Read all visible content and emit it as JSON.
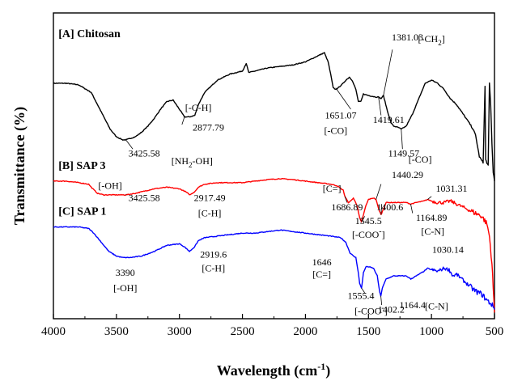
{
  "chart_data": {
    "type": "line",
    "xlabel": "Wavelength (cm",
    "xlabel_sup": "-1",
    "xlabel_close": ")",
    "ylabel": "Transmittance (%)",
    "xlim": [
      4000,
      500
    ],
    "x_reversed": true,
    "x_ticks": [
      4000,
      3500,
      3000,
      2500,
      2000,
      1500,
      1000,
      500
    ],
    "x_tick_labels": [
      "4000",
      "3500",
      "3000",
      "2500",
      "2000",
      "1500",
      "1000",
      "500"
    ],
    "ylim": [
      0,
      100
    ],
    "y_ticks_labeled": false,
    "grid": false,
    "series": [
      {
        "name": "[A] Chitosan",
        "color": "#000000",
        "points": [
          [
            4000,
            77
          ],
          [
            3900,
            77
          ],
          [
            3800,
            76.5
          ],
          [
            3700,
            74
          ],
          [
            3650,
            70
          ],
          [
            3600,
            66
          ],
          [
            3550,
            62
          ],
          [
            3500,
            59.5
          ],
          [
            3450,
            58.5
          ],
          [
            3425,
            58.5
          ],
          [
            3350,
            59.5
          ],
          [
            3300,
            61
          ],
          [
            3250,
            63
          ],
          [
            3200,
            65.5
          ],
          [
            3150,
            68.5
          ],
          [
            3100,
            71
          ],
          [
            3050,
            71.5
          ],
          [
            3000,
            68.5
          ],
          [
            2960,
            66
          ],
          [
            2920,
            66
          ],
          [
            2878,
            66.5
          ],
          [
            2850,
            70
          ],
          [
            2800,
            74
          ],
          [
            2700,
            78
          ],
          [
            2600,
            80
          ],
          [
            2500,
            81
          ],
          [
            2470,
            83.5
          ],
          [
            2450,
            80.5
          ],
          [
            2400,
            81
          ],
          [
            2300,
            82
          ],
          [
            2200,
            82.5
          ],
          [
            2100,
            83
          ],
          [
            2000,
            84
          ],
          [
            1900,
            86
          ],
          [
            1850,
            87
          ],
          [
            1820,
            84
          ],
          [
            1800,
            80
          ],
          [
            1780,
            75.5
          ],
          [
            1760,
            75
          ],
          [
            1740,
            75.5
          ],
          [
            1700,
            77
          ],
          [
            1680,
            78
          ],
          [
            1651,
            79
          ],
          [
            1630,
            78
          ],
          [
            1600,
            75
          ],
          [
            1580,
            71
          ],
          [
            1560,
            71
          ],
          [
            1540,
            73.5
          ],
          [
            1500,
            73
          ],
          [
            1440,
            72.5
          ],
          [
            1420,
            72.5
          ],
          [
            1400,
            72
          ],
          [
            1381,
            73
          ],
          [
            1350,
            68
          ],
          [
            1320,
            64
          ],
          [
            1300,
            63
          ],
          [
            1260,
            62.5
          ],
          [
            1240,
            62
          ],
          [
            1200,
            63
          ],
          [
            1150,
            67
          ],
          [
            1100,
            72
          ],
          [
            1050,
            77
          ],
          [
            1000,
            78
          ],
          [
            950,
            77
          ],
          [
            900,
            75
          ],
          [
            850,
            72
          ],
          [
            800,
            70
          ],
          [
            750,
            67
          ],
          [
            700,
            64
          ],
          [
            670,
            62
          ],
          [
            650,
            60
          ],
          [
            620,
            53
          ],
          [
            590,
            51
          ],
          [
            575,
            76
          ],
          [
            570,
            52
          ],
          [
            560,
            51
          ],
          [
            550,
            50
          ],
          [
            540,
            77
          ],
          [
            530,
            70
          ],
          [
            520,
            57
          ],
          [
            510,
            48
          ],
          [
            500,
            45
          ]
        ]
      },
      {
        "name": "[B] SAP 3",
        "color": "#ff0000",
        "points": [
          [
            4000,
            45
          ],
          [
            3900,
            45
          ],
          [
            3800,
            44.5
          ],
          [
            3720,
            44
          ],
          [
            3700,
            43
          ],
          [
            3650,
            41
          ],
          [
            3600,
            40.5
          ],
          [
            3550,
            40.5
          ],
          [
            3500,
            40.5
          ],
          [
            3426,
            40.5
          ],
          [
            3350,
            41
          ],
          [
            3300,
            41.5
          ],
          [
            3200,
            42.5
          ],
          [
            3100,
            43
          ],
          [
            3000,
            42.5
          ],
          [
            2950,
            41.5
          ],
          [
            2917,
            40.5
          ],
          [
            2880,
            41.5
          ],
          [
            2850,
            43
          ],
          [
            2800,
            44
          ],
          [
            2700,
            44.5
          ],
          [
            2600,
            44.5
          ],
          [
            2500,
            44.5
          ],
          [
            2400,
            45
          ],
          [
            2300,
            45.5
          ],
          [
            2200,
            45.8
          ],
          [
            2100,
            45.5
          ],
          [
            2000,
            45
          ],
          [
            1900,
            44.5
          ],
          [
            1800,
            44
          ],
          [
            1750,
            43.5
          ],
          [
            1700,
            42
          ],
          [
            1687,
            40
          ],
          [
            1660,
            38
          ],
          [
            1640,
            38.5
          ],
          [
            1620,
            39.5
          ],
          [
            1590,
            37
          ],
          [
            1570,
            33
          ],
          [
            1555,
            31.5
          ],
          [
            1540,
            34
          ],
          [
            1520,
            37
          ],
          [
            1500,
            39
          ],
          [
            1460,
            39.5
          ],
          [
            1440,
            39
          ],
          [
            1420,
            36
          ],
          [
            1400,
            34
          ],
          [
            1385,
            35.5
          ],
          [
            1360,
            38
          ],
          [
            1300,
            38
          ],
          [
            1200,
            38
          ],
          [
            1165,
            37.5
          ],
          [
            1120,
            38
          ],
          [
            1060,
            38.5
          ],
          [
            1031,
            39
          ],
          [
            1000,
            38.5
          ],
          [
            950,
            38
          ],
          [
            900,
            38
          ],
          [
            850,
            38.5
          ],
          [
            800,
            37.5
          ],
          [
            750,
            36.5
          ],
          [
            700,
            35.5
          ],
          [
            650,
            34.5
          ],
          [
            600,
            33.5
          ],
          [
            560,
            31
          ],
          [
            540,
            27
          ],
          [
            520,
            18
          ],
          [
            505,
            6
          ],
          [
            500,
            2
          ]
        ]
      },
      {
        "name": "[C] SAP 1",
        "color": "#0000ff",
        "points": [
          [
            4000,
            30
          ],
          [
            3900,
            30
          ],
          [
            3800,
            30
          ],
          [
            3720,
            29.5
          ],
          [
            3680,
            28
          ],
          [
            3620,
            25
          ],
          [
            3560,
            22
          ],
          [
            3500,
            20.5
          ],
          [
            3450,
            20
          ],
          [
            3390,
            20
          ],
          [
            3300,
            20.5
          ],
          [
            3200,
            22
          ],
          [
            3100,
            24
          ],
          [
            3000,
            24.5
          ],
          [
            2960,
            23.5
          ],
          [
            2920,
            22
          ],
          [
            2880,
            23.5
          ],
          [
            2850,
            25.5
          ],
          [
            2800,
            26.5
          ],
          [
            2700,
            27
          ],
          [
            2600,
            27.5
          ],
          [
            2500,
            28
          ],
          [
            2400,
            28
          ],
          [
            2300,
            28.5
          ],
          [
            2200,
            29
          ],
          [
            2100,
            28.5
          ],
          [
            2000,
            28
          ],
          [
            1900,
            27.5
          ],
          [
            1800,
            27
          ],
          [
            1720,
            26.5
          ],
          [
            1680,
            25
          ],
          [
            1646,
            21.5
          ],
          [
            1620,
            20.5
          ],
          [
            1600,
            20
          ],
          [
            1580,
            15
          ],
          [
            1570,
            11.5
          ],
          [
            1555,
            10
          ],
          [
            1540,
            15
          ],
          [
            1520,
            17
          ],
          [
            1500,
            17
          ],
          [
            1460,
            16.5
          ],
          [
            1430,
            14
          ],
          [
            1410,
            8.5
          ],
          [
            1402,
            7.5
          ],
          [
            1390,
            10
          ],
          [
            1360,
            13
          ],
          [
            1300,
            14
          ],
          [
            1200,
            14
          ],
          [
            1164,
            13
          ],
          [
            1120,
            14
          ],
          [
            1060,
            15.5
          ],
          [
            1030,
            16.5
          ],
          [
            1000,
            16
          ],
          [
            950,
            15.5
          ],
          [
            900,
            16.5
          ],
          [
            860,
            16
          ],
          [
            830,
            14
          ],
          [
            800,
            14.5
          ],
          [
            760,
            13
          ],
          [
            720,
            11.5
          ],
          [
            680,
            10
          ],
          [
            650,
            9
          ],
          [
            600,
            8
          ],
          [
            560,
            6
          ],
          [
            530,
            5
          ],
          [
            510,
            4
          ],
          [
            500,
            3
          ]
        ]
      }
    ],
    "panel_labels": [
      {
        "text": "[A] Chitosan",
        "x": 3960,
        "y": 92
      },
      {
        "text": "[B] SAP 3",
        "x": 3960,
        "y": 49
      },
      {
        "text": "[C] SAP 1",
        "x": 3960,
        "y": 34
      }
    ],
    "annotations": [
      {
        "text": "3425.58",
        "x": 3280,
        "y": 53
      },
      {
        "text": "[NH",
        "sub": "2",
        "tail": "-OH]",
        "x": 2900,
        "y": 50.5
      },
      {
        "text": "2877.79",
        "x": 2770,
        "y": 61.5
      },
      {
        "text": "[-C-H]",
        "x": 2850,
        "y": 68
      },
      {
        "text": "1651.07",
        "x": 1720,
        "y": 65.5
      },
      {
        "text": "[-CO]",
        "x": 1760,
        "y": 60.5
      },
      {
        "text": "1381.03",
        "x": 1190,
        "y": 91
      },
      {
        "text": "[-CH",
        "sub": "2",
        "tail": "]",
        "x": 1000,
        "y": 90.5
      },
      {
        "text": "1419.61",
        "x": 1340,
        "y": 64
      },
      {
        "text": "1149.57",
        "x": 1220,
        "y": 53
      },
      {
        "text": "[-CO]",
        "x": 1090,
        "y": 51
      },
      {
        "text": "[-OH]",
        "x": 3550,
        "y": 42.5
      },
      {
        "text": "3425.58",
        "x": 3280,
        "y": 38.5
      },
      {
        "text": "2917.49",
        "x": 2760,
        "y": 38.5
      },
      {
        "text": "[C-H]",
        "x": 2760,
        "y": 33.5
      },
      {
        "text": "[C=]",
        "x": 1790,
        "y": 41.5
      },
      {
        "text": "1686.89",
        "x": 1670,
        "y": 35.5
      },
      {
        "text": "1440.29",
        "x": 1190,
        "y": 46
      },
      {
        "text": "1545.5",
        "x": 1500,
        "y": 31
      },
      {
        "text": "1400.6",
        "x": 1330,
        "y": 35.5
      },
      {
        "text": "[-COO",
        "sup": "-",
        "tail": "]",
        "x": 1500,
        "y": 26.5
      },
      {
        "text": "1031.31",
        "x": 840,
        "y": 41.5
      },
      {
        "text": "1164.89",
        "x": 1000,
        "y": 32
      },
      {
        "text": "[C-N]",
        "x": 990,
        "y": 27.5
      },
      {
        "text": "3390",
        "x": 3430,
        "y": 14
      },
      {
        "text": "[-OH]",
        "x": 3430,
        "y": 9
      },
      {
        "text": "2919.6",
        "x": 2730,
        "y": 20
      },
      {
        "text": "[C-H]",
        "x": 2730,
        "y": 15.5
      },
      {
        "text": "1646",
        "x": 1870,
        "y": 17.5
      },
      {
        "text": "[C=]",
        "x": 1870,
        "y": 13.5
      },
      {
        "text": "1555.4",
        "x": 1560,
        "y": 6.5
      },
      {
        "text": "1402.2",
        "x": 1320,
        "y": 2
      },
      {
        "text": "[-COO",
        "sup": "-",
        "tail": "]",
        "x": 1480,
        "y": 1.5
      },
      {
        "text": "1030.14",
        "x": 870,
        "y": 21.5
      },
      {
        "text": "1164.4",
        "x": 1150,
        "y": 3.5
      },
      {
        "text": "[C-N]",
        "x": 960,
        "y": 3
      }
    ],
    "leader_lines": [
      {
        "from": [
          3425,
          58.5
        ],
        "to": [
          3370,
          55.5
        ]
      },
      {
        "from": [
          2960,
          66
        ],
        "to": [
          2980,
          63.5
        ]
      },
      {
        "from": [
          1760,
          75.5
        ],
        "to": [
          1640,
          68.5
        ]
      },
      {
        "from": [
          1381,
          73
        ],
        "to": [
          1310,
          88
        ]
      },
      {
        "from": [
          1420,
          72.5
        ],
        "to": [
          1400,
          66.5
        ]
      },
      {
        "from": [
          1240,
          62
        ],
        "to": [
          1230,
          55.5
        ]
      },
      {
        "from": [
          3426,
          40.5
        ],
        "to": [
          3420,
          40.5
        ]
      },
      {
        "from": [
          1687,
          40
        ],
        "to": [
          1670,
          38
        ]
      },
      {
        "from": [
          1440,
          39
        ],
        "to": [
          1400,
          44
        ]
      },
      {
        "from": [
          1400,
          34
        ],
        "to": [
          1395,
          37.5
        ]
      },
      {
        "from": [
          1555,
          31.5
        ],
        "to": [
          1530,
          33.5
        ]
      },
      {
        "from": [
          1031,
          39
        ],
        "to": [
          1000,
          40
        ]
      },
      {
        "from": [
          1165,
          37.5
        ],
        "to": [
          1150,
          34.5
        ]
      },
      {
        "from": [
          1555,
          10
        ],
        "to": [
          1530,
          8.5
        ]
      },
      {
        "from": [
          1402,
          7.5
        ],
        "to": [
          1395,
          4.5
        ]
      }
    ]
  }
}
